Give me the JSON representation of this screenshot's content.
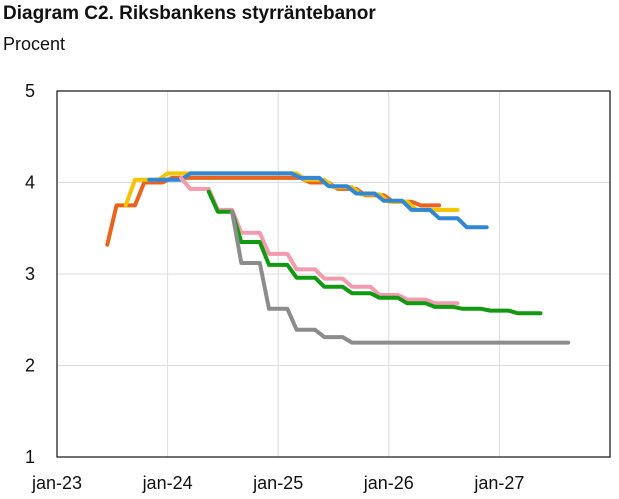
{
  "chart_data": {
    "type": "line",
    "title": "Diagram C2. Riksbankens styrräntebanor",
    "ylabel": "Procent",
    "xlabel": "",
    "xlim": [
      "2023-01-01",
      "2028-01-01"
    ],
    "ylim": [
      1,
      5
    ],
    "x_ticks": [
      {
        "date": "2023-01-01",
        "label": "jan-23"
      },
      {
        "date": "2024-01-01",
        "label": "jan-24"
      },
      {
        "date": "2025-01-01",
        "label": "jan-25"
      },
      {
        "date": "2026-01-01",
        "label": "jan-26"
      },
      {
        "date": "2027-01-01",
        "label": "jan-27"
      }
    ],
    "y_ticks": [
      1,
      2,
      3,
      4,
      5
    ],
    "grid": true,
    "legend": "none",
    "series": [
      {
        "color": "#e8641e",
        "points": [
          [
            "2023-06-15",
            3.32
          ],
          [
            "2023-07-15",
            3.75
          ],
          [
            "2023-09-15",
            3.75
          ],
          [
            "2023-10-15",
            4.0
          ],
          [
            "2023-12-15",
            4.0
          ],
          [
            "2024-01-15",
            4.05
          ],
          [
            "2025-03-15",
            4.05
          ],
          [
            "2025-04-15",
            4.0
          ],
          [
            "2025-06-15",
            4.0
          ],
          [
            "2025-07-15",
            3.93
          ],
          [
            "2025-09-15",
            3.93
          ],
          [
            "2025-10-15",
            3.86
          ],
          [
            "2025-12-15",
            3.86
          ],
          [
            "2026-01-15",
            3.79
          ],
          [
            "2026-03-15",
            3.79
          ],
          [
            "2026-04-15",
            3.75
          ],
          [
            "2026-06-15",
            3.75
          ]
        ]
      },
      {
        "color": "#f5c400",
        "points": [
          [
            "2023-08-15",
            3.75
          ],
          [
            "2023-09-15",
            4.03
          ],
          [
            "2023-12-01",
            4.03
          ],
          [
            "2024-01-01",
            4.1
          ],
          [
            "2025-03-01",
            4.1
          ],
          [
            "2025-04-01",
            4.03
          ],
          [
            "2025-06-01",
            4.03
          ],
          [
            "2025-07-01",
            3.95
          ],
          [
            "2025-09-01",
            3.95
          ],
          [
            "2025-10-01",
            3.87
          ],
          [
            "2025-12-01",
            3.87
          ],
          [
            "2026-01-01",
            3.79
          ],
          [
            "2026-03-01",
            3.79
          ],
          [
            "2026-04-01",
            3.7
          ],
          [
            "2026-08-15",
            3.7
          ]
        ]
      },
      {
        "color": "#2f87d6",
        "points": [
          [
            "2023-11-01",
            4.03
          ],
          [
            "2024-02-15",
            4.03
          ],
          [
            "2024-03-15",
            4.1
          ],
          [
            "2025-02-15",
            4.1
          ],
          [
            "2025-03-15",
            4.05
          ],
          [
            "2025-05-15",
            4.05
          ],
          [
            "2025-06-15",
            3.96
          ],
          [
            "2025-08-15",
            3.96
          ],
          [
            "2025-09-15",
            3.88
          ],
          [
            "2025-11-15",
            3.88
          ],
          [
            "2025-12-15",
            3.8
          ],
          [
            "2026-02-15",
            3.8
          ],
          [
            "2026-03-15",
            3.7
          ],
          [
            "2026-05-15",
            3.7
          ],
          [
            "2026-06-15",
            3.61
          ],
          [
            "2026-08-15",
            3.61
          ],
          [
            "2026-09-15",
            3.51
          ],
          [
            "2026-11-20",
            3.51
          ]
        ]
      },
      {
        "color": "#f29aae",
        "points": [
          [
            "2024-02-15",
            4.05
          ],
          [
            "2024-03-15",
            3.93
          ],
          [
            "2024-05-15",
            3.93
          ],
          [
            "2024-06-15",
            3.7
          ],
          [
            "2024-08-01",
            3.7
          ],
          [
            "2024-09-01",
            3.45
          ],
          [
            "2024-11-01",
            3.45
          ],
          [
            "2024-12-01",
            3.22
          ],
          [
            "2025-02-01",
            3.22
          ],
          [
            "2025-03-01",
            3.05
          ],
          [
            "2025-05-01",
            3.05
          ],
          [
            "2025-06-01",
            2.95
          ],
          [
            "2025-08-01",
            2.95
          ],
          [
            "2025-09-01",
            2.86
          ],
          [
            "2025-11-01",
            2.86
          ],
          [
            "2025-12-01",
            2.77
          ],
          [
            "2026-02-01",
            2.77
          ],
          [
            "2026-03-01",
            2.72
          ],
          [
            "2026-05-01",
            2.72
          ],
          [
            "2026-06-01",
            2.68
          ],
          [
            "2026-08-15",
            2.68
          ]
        ]
      },
      {
        "color": "#129912",
        "points": [
          [
            "2024-05-15",
            3.9
          ],
          [
            "2024-06-15",
            3.68
          ],
          [
            "2024-08-01",
            3.68
          ],
          [
            "2024-09-01",
            3.35
          ],
          [
            "2024-11-01",
            3.35
          ],
          [
            "2024-12-01",
            3.1
          ],
          [
            "2025-02-01",
            3.1
          ],
          [
            "2025-03-01",
            2.96
          ],
          [
            "2025-05-01",
            2.96
          ],
          [
            "2025-06-01",
            2.86
          ],
          [
            "2025-08-01",
            2.86
          ],
          [
            "2025-09-01",
            2.79
          ],
          [
            "2025-11-01",
            2.79
          ],
          [
            "2025-12-01",
            2.74
          ],
          [
            "2026-02-01",
            2.74
          ],
          [
            "2026-03-01",
            2.68
          ],
          [
            "2026-05-01",
            2.68
          ],
          [
            "2026-06-01",
            2.64
          ],
          [
            "2026-08-01",
            2.64
          ],
          [
            "2026-09-01",
            2.62
          ],
          [
            "2026-11-01",
            2.62
          ],
          [
            "2026-12-01",
            2.6
          ],
          [
            "2027-02-01",
            2.6
          ],
          [
            "2027-03-01",
            2.57
          ],
          [
            "2027-05-15",
            2.57
          ]
        ]
      },
      {
        "color": "#8c8c8c",
        "points": [
          [
            "2024-08-01",
            3.68
          ],
          [
            "2024-09-01",
            3.12
          ],
          [
            "2024-11-01",
            3.12
          ],
          [
            "2024-12-01",
            2.62
          ],
          [
            "2025-02-01",
            2.62
          ],
          [
            "2025-03-01",
            2.39
          ],
          [
            "2025-05-01",
            2.39
          ],
          [
            "2025-06-01",
            2.31
          ],
          [
            "2025-08-01",
            2.31
          ],
          [
            "2025-09-01",
            2.25
          ],
          [
            "2027-08-15",
            2.25
          ]
        ]
      }
    ]
  }
}
